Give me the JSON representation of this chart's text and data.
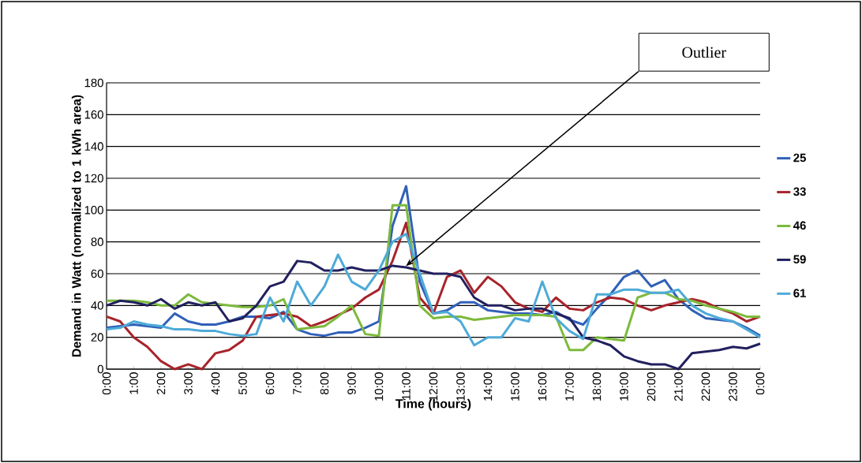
{
  "chart_data": {
    "type": "line",
    "xlabel": "Time (hours)",
    "ylabel": "Demand in Watt (normalized to 1 kWh area)",
    "x": [
      0,
      0.5,
      1,
      1.5,
      2,
      2.5,
      3,
      3.5,
      4,
      4.5,
      5,
      5.5,
      6,
      6.5,
      7,
      7.5,
      8,
      8.5,
      9,
      9.5,
      10,
      10.5,
      11,
      11.5,
      12,
      12.5,
      13,
      13.5,
      14,
      14.5,
      15,
      15.5,
      16,
      16.5,
      17,
      17.5,
      18,
      18.5,
      19,
      19.5,
      20,
      20.5,
      21,
      21.5,
      22,
      22.5,
      23,
      23.5,
      24
    ],
    "series": [
      {
        "name": "25",
        "color": "#3060b8",
        "values": [
          26,
          27,
          28,
          27,
          26,
          35,
          30,
          28,
          28,
          30,
          33,
          33,
          32,
          36,
          25,
          22,
          21,
          23,
          23,
          26,
          30,
          90,
          115,
          55,
          35,
          37,
          42,
          42,
          37,
          36,
          35,
          35,
          34,
          36,
          31,
          28,
          38,
          47,
          58,
          62,
          52,
          56,
          44,
          37,
          32,
          31,
          30,
          26,
          21
        ]
      },
      {
        "name": "33",
        "color": "#a8232a",
        "values": [
          33,
          30,
          20,
          14,
          5,
          0,
          3,
          0,
          10,
          12,
          18,
          33,
          34,
          35,
          33,
          27,
          30,
          34,
          38,
          45,
          50,
          68,
          92,
          45,
          35,
          58,
          62,
          48,
          58,
          52,
          42,
          38,
          36,
          45,
          38,
          37,
          42,
          45,
          44,
          40,
          37,
          40,
          42,
          44,
          42,
          38,
          35,
          30,
          33
        ]
      },
      {
        "name": "46",
        "color": "#7cba3c",
        "values": [
          43,
          43,
          43,
          42,
          40,
          40,
          47,
          42,
          41,
          40,
          39,
          39,
          40,
          44,
          25,
          26,
          27,
          33,
          40,
          22,
          21,
          103,
          103,
          40,
          32,
          33,
          33,
          31,
          32,
          33,
          34,
          34,
          34,
          33,
          12,
          12,
          20,
          19,
          18,
          45,
          48,
          48,
          44,
          43,
          40,
          38,
          36,
          33,
          33
        ]
      },
      {
        "name": "59",
        "color": "#22205e",
        "values": [
          40,
          43,
          42,
          40,
          44,
          38,
          42,
          40,
          42,
          30,
          32,
          40,
          52,
          55,
          68,
          67,
          62,
          62,
          64,
          62,
          62,
          65,
          64,
          62,
          60,
          60,
          58,
          45,
          40,
          40,
          37,
          38,
          38,
          35,
          32,
          20,
          18,
          15,
          8,
          5,
          3,
          3,
          0,
          10,
          11,
          12,
          14,
          13,
          16
        ]
      },
      {
        "name": "61",
        "color": "#4eaad8",
        "values": [
          25,
          26,
          30,
          28,
          27,
          25,
          25,
          24,
          24,
          22,
          21,
          22,
          45,
          30,
          55,
          40,
          52,
          72,
          55,
          50,
          62,
          80,
          85,
          60,
          35,
          36,
          30,
          15,
          20,
          20,
          32,
          30,
          55,
          32,
          24,
          19,
          47,
          47,
          50,
          50,
          48,
          48,
          50,
          40,
          35,
          32,
          30,
          25,
          20
        ]
      }
    ],
    "xlim": [
      0,
      24
    ],
    "xticks": [
      {
        "value": 0,
        "label": "0:00"
      },
      {
        "value": 1,
        "label": "1:00"
      },
      {
        "value": 2,
        "label": "2:00"
      },
      {
        "value": 3,
        "label": "3:00"
      },
      {
        "value": 4,
        "label": "4:00"
      },
      {
        "value": 5,
        "label": "5:00"
      },
      {
        "value": 6,
        "label": "6:00"
      },
      {
        "value": 7,
        "label": "7:00"
      },
      {
        "value": 8,
        "label": "8:00"
      },
      {
        "value": 9,
        "label": "9:00"
      },
      {
        "value": 10,
        "label": "10:00"
      },
      {
        "value": 11,
        "label": "11:00"
      },
      {
        "value": 12,
        "label": "12:00"
      },
      {
        "value": 13,
        "label": "13:00"
      },
      {
        "value": 14,
        "label": "14:00"
      },
      {
        "value": 15,
        "label": "15:00"
      },
      {
        "value": 16,
        "label": "16:00"
      },
      {
        "value": 17,
        "label": "17:00"
      },
      {
        "value": 18,
        "label": "18:00"
      },
      {
        "value": 19,
        "label": "19:00"
      },
      {
        "value": 20,
        "label": "20:00"
      },
      {
        "value": 21,
        "label": "21:00"
      },
      {
        "value": 22,
        "label": "22:00"
      },
      {
        "value": 23,
        "label": "23:00"
      },
      {
        "value": 24,
        "label": "0:00"
      }
    ],
    "ylim": [
      0,
      180
    ],
    "yticks": [
      0,
      20,
      40,
      60,
      80,
      100,
      120,
      140,
      160,
      180
    ],
    "grid": "y",
    "legend": "right",
    "marker": "none",
    "line_style": "solid",
    "annotations": [
      "Outlier"
    ]
  }
}
